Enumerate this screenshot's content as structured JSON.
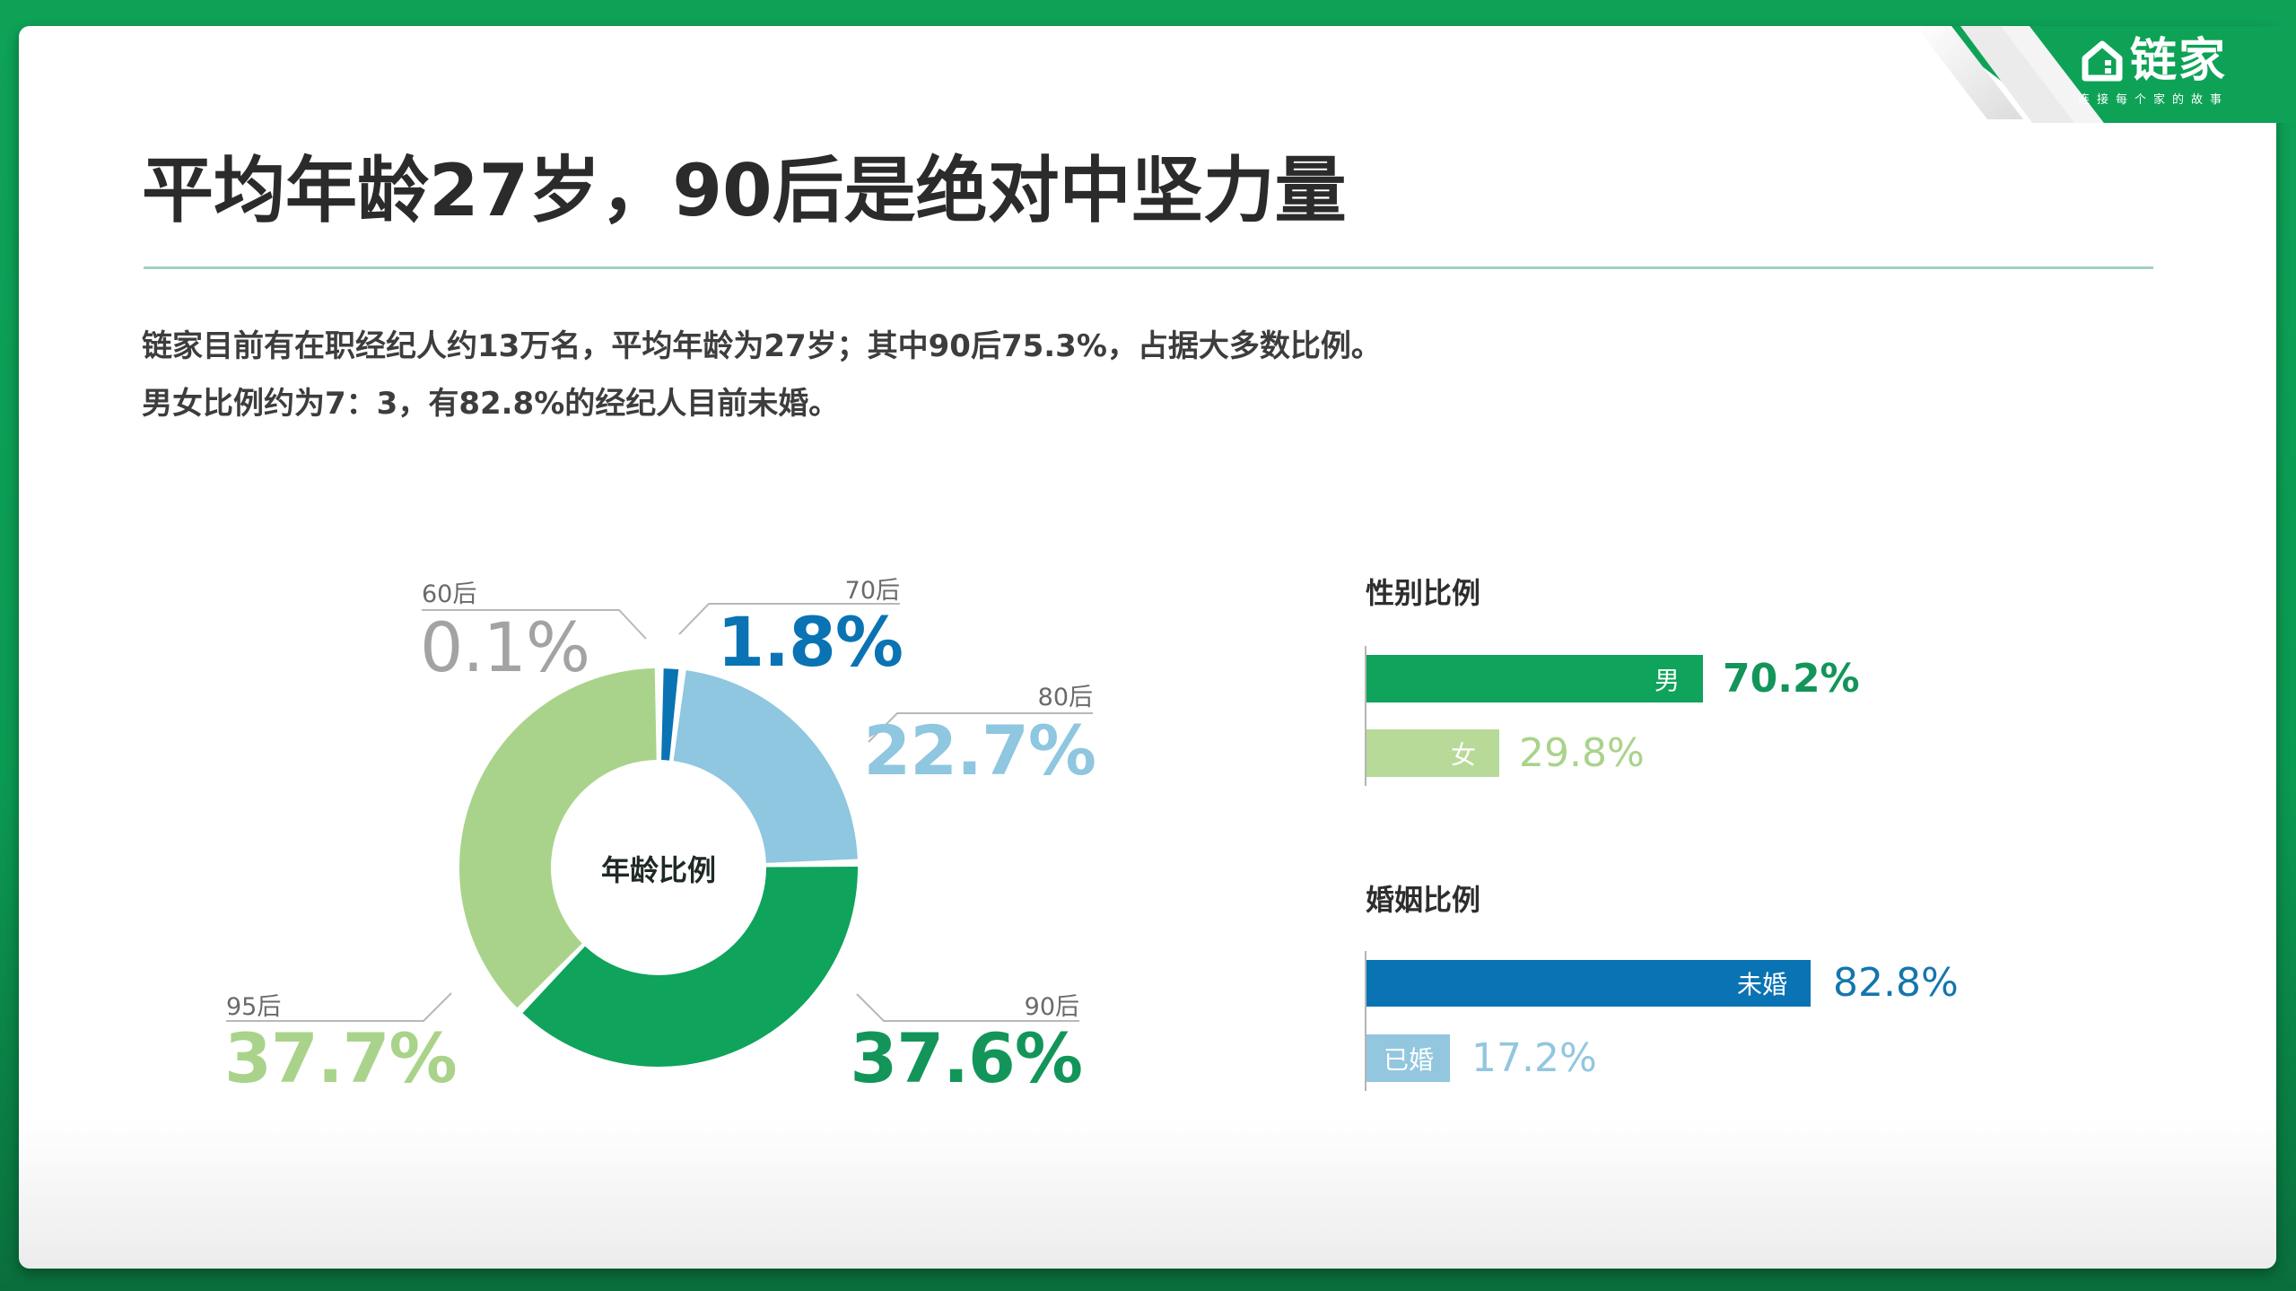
{
  "brand": {
    "name": "链家",
    "tagline": "连接每个家的故事",
    "logo_icon": "house-icon",
    "colors": {
      "background": "#0ea257",
      "card": "#ffffff"
    }
  },
  "header": {
    "title": "平均年龄27岁，90后是绝对中坚力量"
  },
  "description": {
    "line1": "链家目前有在职经纪人约13万名，平均年龄为27岁；其中90后75.3%，占据大多数比例。",
    "line2": "男女比例约为7：3，有82.8%的经纪人目前未婚。"
  },
  "age_chart": {
    "center_label": "年龄比例",
    "segments": [
      {
        "label": "60后",
        "value": "0.1%",
        "color": "#9a9a9a"
      },
      {
        "label": "70后",
        "value": "1.8%",
        "color": "#0a73b3"
      },
      {
        "label": "80后",
        "value": "22.7%",
        "color": "#8fc6e0"
      },
      {
        "label": "90后",
        "value": "37.6%",
        "color": "#0fa35b"
      },
      {
        "label": "95后",
        "value": "37.7%",
        "color": "#a9d38a"
      }
    ]
  },
  "gender_chart": {
    "title": "性别比例",
    "bars": [
      {
        "label": "男",
        "value": "70.2%",
        "color": "#0fa35b",
        "text_color": "#13955a"
      },
      {
        "label": "女",
        "value": "29.8%",
        "color": "#b7da98",
        "text_color": "#a9d38a"
      }
    ]
  },
  "marriage_chart": {
    "title": "婚姻比例",
    "bars": [
      {
        "label": "未婚",
        "value": "82.8%",
        "color": "#0a73b3",
        "text_color": "#1476ad"
      },
      {
        "label": "已婚",
        "value": "17.2%",
        "color": "#93c6df",
        "text_color": "#93c6df"
      }
    ]
  },
  "chart_data": [
    {
      "type": "pie",
      "title": "年龄比例",
      "categories": [
        "60后",
        "70后",
        "80后",
        "90后",
        "95后"
      ],
      "values": [
        0.1,
        1.8,
        22.7,
        37.6,
        37.7
      ],
      "unit": "%",
      "colors": [
        "#9a9a9a",
        "#0a73b3",
        "#8fc6e0",
        "#0fa35b",
        "#a9d38a"
      ],
      "donut": true
    },
    {
      "type": "bar",
      "orientation": "horizontal",
      "title": "性别比例",
      "categories": [
        "男",
        "女"
      ],
      "values": [
        70.2,
        29.8
      ],
      "unit": "%",
      "colors": [
        "#0fa35b",
        "#b7da98"
      ]
    },
    {
      "type": "bar",
      "orientation": "horizontal",
      "title": "婚姻比例",
      "categories": [
        "未婚",
        "已婚"
      ],
      "values": [
        82.8,
        17.2
      ],
      "unit": "%",
      "colors": [
        "#0a73b3",
        "#93c6df"
      ]
    }
  ]
}
